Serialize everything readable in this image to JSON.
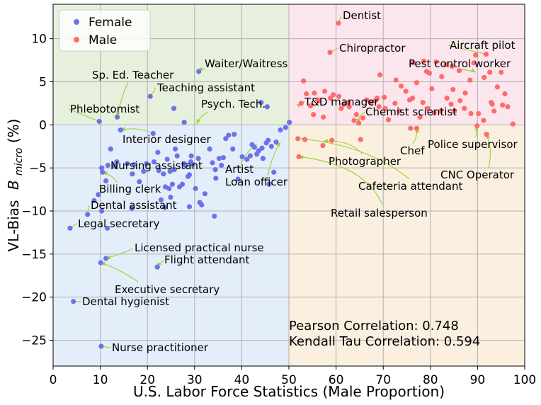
{
  "chart_data": {
    "type": "scatter",
    "xlabel": "U.S. Labor Force Statistics (Male Proportion)",
    "ylabel": "VL-Bias",
    "ylabel_symbol": "B",
    "ylabel_subscript": "micro",
    "ylabel_unit": "(%)",
    "xlim": [
      0,
      100
    ],
    "ylim": [
      -28,
      14
    ],
    "xticks": [
      0,
      10,
      20,
      30,
      40,
      50,
      60,
      70,
      80,
      90,
      100
    ],
    "yticks": [
      -25,
      -20,
      -15,
      -10,
      -5,
      0,
      5,
      10
    ],
    "grid": true,
    "legend_position": "top-left",
    "quadrant_colors": {
      "top_left": "#e6f0dc",
      "top_right": "#fce6ee",
      "bottom_left": "#e3eefa",
      "bottom_right": "#fbf0e0"
    },
    "series": [
      {
        "name": "Female",
        "color": "#6b74e6",
        "points": [
          [
            9.8,
            0.4
          ],
          [
            13.6,
            0.9
          ],
          [
            14.3,
            -0.6
          ],
          [
            10.3,
            -5
          ],
          [
            10.5,
            -5.5
          ],
          [
            11.2,
            -6.5
          ],
          [
            11.6,
            -4.7
          ],
          [
            12.2,
            -2.8
          ],
          [
            13.1,
            -4.8
          ],
          [
            13.5,
            -4.3
          ],
          [
            15.7,
            -4.5
          ],
          [
            16.8,
            -5.7
          ],
          [
            17.2,
            -4.6
          ],
          [
            18.3,
            -6.6
          ],
          [
            19.2,
            -5.4
          ],
          [
            19.8,
            -4.5
          ],
          [
            20.6,
            3.3
          ],
          [
            21.2,
            -1
          ],
          [
            21.4,
            -4.3
          ],
          [
            22.2,
            -3.2
          ],
          [
            22.4,
            -5.3
          ],
          [
            22.9,
            -8.7
          ],
          [
            23.4,
            -5.7
          ],
          [
            23.8,
            -7.2
          ],
          [
            24.2,
            -4
          ],
          [
            24.6,
            -7.4
          ],
          [
            24.8,
            -5.4
          ],
          [
            24.9,
            -8.4
          ],
          [
            25.3,
            -6.9
          ],
          [
            25.7,
            -5.2
          ],
          [
            25.9,
            -2.8
          ],
          [
            26.3,
            -3.6
          ],
          [
            26.8,
            -7.2
          ],
          [
            27.4,
            -6.9
          ],
          [
            27.8,
            -4.5
          ],
          [
            28.1,
            -4.7
          ],
          [
            28.6,
            -6
          ],
          [
            28.9,
            -5.8
          ],
          [
            29.2,
            -4.3
          ],
          [
            29.3,
            -3.6
          ],
          [
            29.6,
            -4.6
          ],
          [
            30.2,
            -7.4
          ],
          [
            30.8,
            -3.9
          ],
          [
            31.1,
            -9
          ],
          [
            31.5,
            -9.3
          ],
          [
            32.2,
            -8
          ],
          [
            33.2,
            -2.8
          ],
          [
            33.8,
            -4.4
          ],
          [
            34.4,
            -5.2
          ],
          [
            34.5,
            -6.2
          ],
          [
            35.2,
            -3.9
          ],
          [
            35.7,
            -4.7
          ],
          [
            36.1,
            -3.8
          ],
          [
            36.6,
            -1.6
          ],
          [
            37.2,
            -1.2
          ],
          [
            38.1,
            -2.8
          ],
          [
            38.4,
            -1.1
          ],
          [
            39.2,
            -6.3
          ],
          [
            40.1,
            -3.7
          ],
          [
            41.1,
            -4
          ],
          [
            41.8,
            -3.6
          ],
          [
            42.2,
            -2.3
          ],
          [
            42.7,
            -2.6
          ],
          [
            43.2,
            -3.4
          ],
          [
            43.6,
            -3
          ],
          [
            44.3,
            -2.7
          ],
          [
            44.5,
            -3.9
          ],
          [
            45.2,
            -2.1
          ],
          [
            45.6,
            -1.8
          ],
          [
            45.8,
            -6.9
          ],
          [
            46.3,
            -2.5
          ],
          [
            46.8,
            -5.5
          ],
          [
            47.3,
            -2
          ],
          [
            48.2,
            -0.6
          ],
          [
            49.3,
            -0.3
          ],
          [
            50.1,
            0.3
          ],
          [
            44.1,
            2.6
          ],
          [
            45.4,
            2.1
          ],
          [
            27.8,
            0.3
          ],
          [
            30.9,
            6.2
          ],
          [
            25.6,
            1.9
          ],
          [
            34.2,
            -10.6
          ],
          [
            28.9,
            -9.5
          ],
          [
            23.7,
            -9.6
          ],
          [
            16.7,
            -9.7
          ],
          [
            11.5,
            -12
          ],
          [
            10.3,
            -10
          ],
          [
            7.3,
            -10.4
          ],
          [
            8.7,
            -8.8
          ],
          [
            9.6,
            -8.1
          ],
          [
            3.6,
            -12
          ],
          [
            10.1,
            -16
          ],
          [
            11.2,
            -15.5
          ],
          [
            22.1,
            -16.5
          ],
          [
            4.3,
            -20.5
          ],
          [
            10.2,
            -25.7
          ]
        ]
      },
      {
        "name": "Male",
        "color": "#ff6b6b",
        "points": [
          [
            60.5,
            11.8
          ],
          [
            58.7,
            8.4
          ],
          [
            91.8,
            8.2
          ],
          [
            89.6,
            8.1
          ],
          [
            89.2,
            7.2
          ],
          [
            92.6,
            6.1
          ],
          [
            95,
            6.1
          ],
          [
            91.4,
            5.5
          ],
          [
            88.4,
            5.2
          ],
          [
            76.4,
            7.2
          ],
          [
            78.6,
            7.4
          ],
          [
            81.2,
            7.3
          ],
          [
            83.3,
            7
          ],
          [
            84.6,
            6.8
          ],
          [
            79.2,
            6.2
          ],
          [
            86.1,
            6.3
          ],
          [
            69.3,
            5.8
          ],
          [
            72.7,
            5.2
          ],
          [
            79.8,
            6
          ],
          [
            82.4,
            5.6
          ],
          [
            73.8,
            4.5
          ],
          [
            77.1,
            4.9
          ],
          [
            80.3,
            4.2
          ],
          [
            84.8,
            4.1
          ],
          [
            87.4,
            3.7
          ],
          [
            94.2,
            4.4
          ],
          [
            95.8,
            3.6
          ],
          [
            53.1,
            5.1
          ],
          [
            53.7,
            3.6
          ],
          [
            55.4,
            3.7
          ],
          [
            57.6,
            3.9
          ],
          [
            56.3,
            2.8
          ],
          [
            58.8,
            3.1
          ],
          [
            59.4,
            3.5
          ],
          [
            60.6,
            3.3
          ],
          [
            61.7,
            2.4
          ],
          [
            61.1,
            1.9
          ],
          [
            62.8,
            2.1
          ],
          [
            64.3,
            1.2
          ],
          [
            65.7,
            0.8
          ],
          [
            67.4,
            2.6
          ],
          [
            68.3,
            2.8
          ],
          [
            69.1,
            2.1
          ],
          [
            70.2,
            3.2
          ],
          [
            70.4,
            1.9
          ],
          [
            71.1,
            0.6
          ],
          [
            72.5,
            2.5
          ],
          [
            73.4,
            1.6
          ],
          [
            74.8,
            3.9
          ],
          [
            75.6,
            2.9
          ],
          [
            76.2,
            3.1
          ],
          [
            77.8,
            0.9
          ],
          [
            78.4,
            2.6
          ],
          [
            79.5,
            1.9
          ],
          [
            80.8,
            1.4
          ],
          [
            82.2,
            1.6
          ],
          [
            83.5,
            3.1
          ],
          [
            84.4,
            2.4
          ],
          [
            85.1,
            1.6
          ],
          [
            86.3,
            2.8
          ],
          [
            87.2,
            1.9
          ],
          [
            88.6,
            1.3
          ],
          [
            90.2,
            1.3
          ],
          [
            91.3,
            0.5
          ],
          [
            93.1,
            2.4
          ],
          [
            93.5,
            1.6
          ],
          [
            95.3,
            2.3
          ],
          [
            96.4,
            2.1
          ],
          [
            97.5,
            0.1
          ],
          [
            92.9,
            2.6
          ],
          [
            52.6,
            2.5
          ],
          [
            54.6,
            2.2
          ],
          [
            56.1,
            2.9
          ],
          [
            57.3,
            0.9
          ],
          [
            63.8,
            0.5
          ],
          [
            65.2,
            -1.7
          ],
          [
            64.8,
            0.2
          ],
          [
            75.8,
            -0.4
          ],
          [
            77.1,
            -0.4
          ],
          [
            89.9,
            -0.1
          ],
          [
            91.9,
            -1.1
          ],
          [
            51.9,
            -1.6
          ],
          [
            53.4,
            -1.7
          ],
          [
            59.1,
            -1.8
          ],
          [
            57.2,
            -2.4
          ],
          [
            52.1,
            -3.7
          ],
          [
            62.6,
            2.6
          ],
          [
            66.5,
            2.9
          ],
          [
            68.7,
            3.1
          ],
          [
            55.2,
            1.2
          ]
        ]
      }
    ],
    "annotations": [
      {
        "text": "Dentist",
        "point": [
          60.5,
          11.8
        ]
      },
      {
        "text": "Chiropractor",
        "point": [
          58.7,
          8.4
        ]
      },
      {
        "text": "Aircraft pilot",
        "point": [
          91.8,
          8.2
        ]
      },
      {
        "text": "Pest control worker",
        "point": [
          89.6,
          6.1
        ]
      },
      {
        "text": "T&D manager",
        "point": [
          52.6,
          2.5
        ]
      },
      {
        "text": "Chemist scientist",
        "point": [
          64.8,
          0.2
        ]
      },
      {
        "text": "Chef",
        "point": [
          77.1,
          -0.4
        ]
      },
      {
        "text": "Police supervisor",
        "point": [
          89.9,
          -0.1
        ]
      },
      {
        "text": "CNC Operator",
        "point": [
          91.9,
          -1.1
        ]
      },
      {
        "text": "Photographer",
        "point": [
          57.3,
          -1.9
        ]
      },
      {
        "text": "Cafeteria attendant",
        "point": [
          52.4,
          -1.6
        ]
      },
      {
        "text": "Retail salesperson",
        "point": [
          52.1,
          -3.7
        ]
      },
      {
        "text": "Waiter/Waitress",
        "point": [
          30.9,
          6.2
        ]
      },
      {
        "text": "Sp. Ed. Teacher",
        "point": [
          13.6,
          0.9
        ]
      },
      {
        "text": "Teaching assistant",
        "point": [
          20.6,
          3.3
        ]
      },
      {
        "text": "Psych. Tech.",
        "point": [
          30.5,
          0.1
        ]
      },
      {
        "text": "Phlebotomist",
        "point": [
          9.8,
          0.4
        ]
      },
      {
        "text": "Interior designer",
        "point": [
          14.3,
          -0.6
        ]
      },
      {
        "text": "Nursing assistant",
        "point": [
          11.6,
          -4.7
        ]
      },
      {
        "text": "Artist",
        "point": [
          43.2,
          -2.3
        ]
      },
      {
        "text": "Loan officer",
        "point": [
          48.2,
          -2.0
        ]
      },
      {
        "text": "Billing clerk",
        "point": [
          10.5,
          -5.5
        ]
      },
      {
        "text": "Dental assistant",
        "point": [
          7.3,
          -10.4
        ]
      },
      {
        "text": "Legal secretary",
        "point": [
          3.6,
          -12.0
        ]
      },
      {
        "text": "Licensed practical nurse",
        "point": [
          11.2,
          -15.5
        ]
      },
      {
        "text": "Flight attendant",
        "point": [
          22.1,
          -16.5
        ]
      },
      {
        "text": "Executive secretary",
        "point": [
          10.1,
          -16.0
        ]
      },
      {
        "text": "Dental hygienist",
        "point": [
          4.3,
          -20.5
        ]
      },
      {
        "text": "Nurse practitioner",
        "point": [
          10.2,
          -25.7
        ]
      }
    ],
    "stats": {
      "pearson": "Pearson Correlation: 0.748",
      "kendall": "Kendall Tau Correlation: 0.594"
    }
  }
}
